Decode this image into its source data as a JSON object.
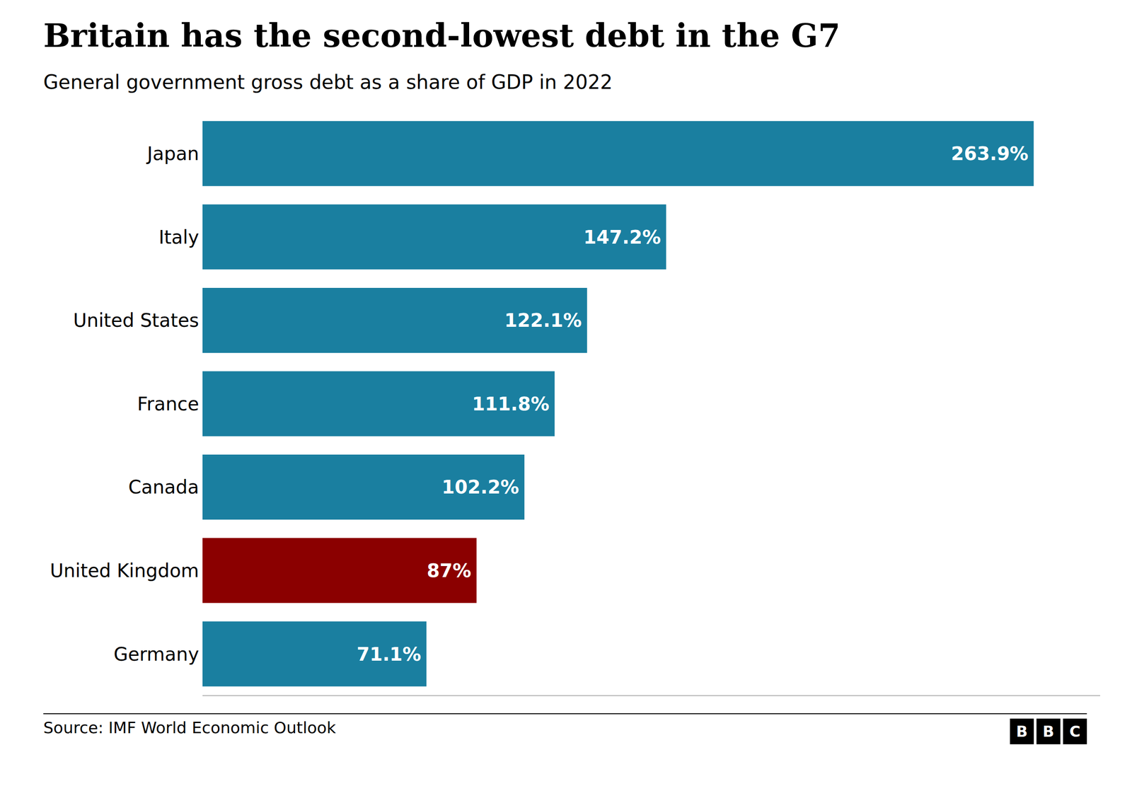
{
  "chart_data": {
    "type": "bar",
    "orientation": "horizontal",
    "title": "Britain has the second-lowest debt in the G7",
    "subtitle": "General government gross debt as a share of GDP in 2022",
    "annotations": [
      "Source: IMF World Economic Outlook",
      "BBC"
    ],
    "categories": [
      "Japan",
      "Italy",
      "United States",
      "France",
      "Canada",
      "United Kingdom",
      "Germany"
    ],
    "values": [
      263.9,
      147.2,
      122.1,
      111.8,
      102.2,
      87.0,
      71.1
    ],
    "value_labels": [
      "263.9%",
      "147.2%",
      "122.1%",
      "111.8%",
      "102.2%",
      "87%",
      "71.1%"
    ],
    "colors": [
      "#1a7fa0",
      "#1a7fa0",
      "#1a7fa0",
      "#1a7fa0",
      "#1a7fa0",
      "#8b0000",
      "#1a7fa0"
    ],
    "xlim": [
      0,
      285
    ],
    "grid": false,
    "data_labels": true,
    "tick_labels": "y"
  }
}
